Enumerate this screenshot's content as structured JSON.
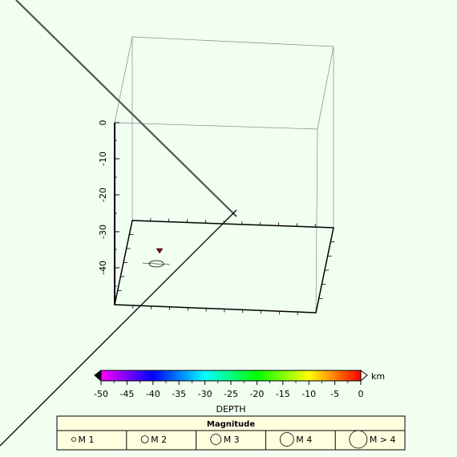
{
  "depth_axis": {
    "ticks": [
      "0",
      "-10",
      "-20",
      "-30",
      "-40"
    ]
  },
  "colorbar": {
    "ticks": [
      "-50",
      "-45",
      "-40",
      "-35",
      "-30",
      "-25",
      "-20",
      "-15",
      "-10",
      "-5",
      "0"
    ],
    "unit": "km",
    "label": "DEPTH",
    "min_color": "#000000",
    "max_color": "#ffffff"
  },
  "legend": {
    "title": "Magnitude",
    "items": [
      "M 1",
      "M 2",
      "M 3",
      "M 4",
      "M > 4"
    ]
  },
  "colors": {
    "background": "#f0fff0",
    "legend_bg": "#ffffe0",
    "marker": "#8b0000",
    "trace_line": "#555555"
  }
}
